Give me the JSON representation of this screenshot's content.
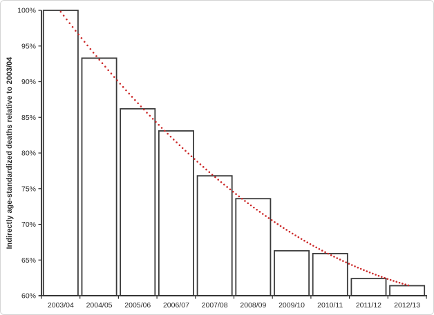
{
  "frame": {
    "background": "#ffffff",
    "border_color": "#d4d4d4"
  },
  "chart_data": {
    "type": "bar",
    "title": "",
    "xlabel": "",
    "ylabel": "Indirectly age-standardized deaths relative to 2003/04",
    "categories": [
      "2003/04",
      "2004/05",
      "2005/06",
      "2006/07",
      "2007/08",
      "2008/09",
      "2009/10",
      "2010/11",
      "2011/12",
      "2012/13"
    ],
    "values": [
      100,
      93.3,
      86.2,
      83.1,
      76.8,
      73.6,
      66.3,
      65.9,
      62.4,
      61.4
    ],
    "unit": "%",
    "ylim": [
      60,
      100
    ],
    "ytick_step": 5,
    "ytick_labels": [
      "60%",
      "65%",
      "70%",
      "75%",
      "80%",
      "85%",
      "90%",
      "95%",
      "100%"
    ],
    "grid": false,
    "legend_position": "none",
    "bar_fill": "#ffffff",
    "bar_border_color": "#3a3a3a",
    "axis_color": "#2e2e2e",
    "trendline": {
      "type": "polynomial-2",
      "style": "dotted",
      "color": "#cc2a2a",
      "coefficients": {
        "a": 99.8,
        "b": -7.0,
        "c": 0.305
      },
      "category_range": [
        0,
        9.1
      ]
    }
  }
}
